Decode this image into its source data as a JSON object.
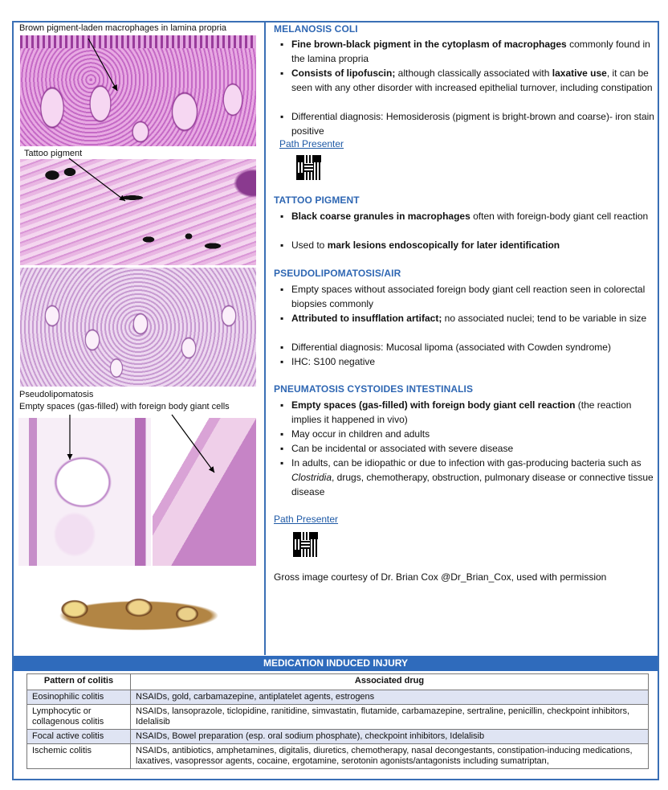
{
  "left": {
    "caption_melanosis": "Brown pigment-laden macrophages in lamina propria",
    "caption_tattoo": "Tattoo pigment",
    "caption_pseudo_1": "Pseudolipomatosis",
    "caption_pseudo_2": "Empty spaces (gas-filled) with foreign body giant cells"
  },
  "melanosis": {
    "heading": "MELANOSIS COLI",
    "b1_bold": "Fine brown-black pigment in the cytoplasm of macrophages",
    "b1_rest": " commonly found in the lamina propria",
    "b2_bold": "Consists of lipofuscin;",
    "b2_mid": " although classically associated with ",
    "b2_bold2": "laxative use",
    "b2_rest": ", it can be seen with any other disorder with increased epithelial turnover, including constipation",
    "b3": "Differential diagnosis: Hemosiderosis (pigment is bright-brown and coarse)- iron stain positive",
    "link": "Path Presenter"
  },
  "tattoo": {
    "heading": "TATTOO PIGMENT",
    "b1_bold": "Black coarse granules in macrophages",
    "b1_rest": " often with foreign-body giant cell reaction",
    "b2_pre": "Used to ",
    "b2_bold": "mark lesions endoscopically for later identification"
  },
  "pseudo": {
    "heading": "PSEUDOLIPOMATOSIS/AIR",
    "b1": "Empty spaces without associated foreign body giant cell reaction seen in colorectal biopsies commonly",
    "b2_bold": "Attributed to insufflation artifact;",
    "b2_rest": " no associated nuclei; tend to be variable in size",
    "b3": "Differential diagnosis: Mucosal lipoma (associated with Cowden syndrome)",
    "b4": "IHC: S100 negative"
  },
  "pneumatosis": {
    "heading": "PNEUMATOSIS CYSTOIDES INTESTINALIS",
    "b1_bold": "Empty spaces (gas-filled) with foreign body giant cell reaction",
    "b1_rest": " (the reaction implies it happened in vivo)",
    "b2": "May occur in children and adults",
    "b3": "Can be incidental or associated with severe disease",
    "b4_pre": "In adults, can be idiopathic or due to infection with gas-producing bacteria such as ",
    "b4_ital": "Clostridia",
    "b4_rest": ", drugs, chemotherapy, obstruction, pulmonary disease or connective tissue disease",
    "link": "Path Presenter",
    "courtesy": "Gross image courtesy of Dr. Brian Cox @Dr_Brian_Cox, used with permission"
  },
  "table": {
    "title": "MEDICATION INDUCED INJURY",
    "col1": "Pattern of colitis",
    "col2": "Associated drug",
    "rows": [
      {
        "pattern": "Eosinophilic colitis",
        "drug": "NSAIDs, gold, carbamazepine, antiplatelet agents, estrogens"
      },
      {
        "pattern": "Lymphocytic or collagenous colitis",
        "drug": "NSAIDs, lansoprazole, ticlopidine, ranitidine, simvastatin, flutamide, carbamazepine, sertraline, penicillin, checkpoint inhibitors, Idelalisib"
      },
      {
        "pattern": "Focal active colitis",
        "drug": "NSAIDs, Bowel preparation (esp. oral sodium phosphate), checkpoint inhibitors, Idelalisib"
      },
      {
        "pattern": "Ischemic colitis",
        "drug": "NSAIDs, antibiotics, amphetamines, digitalis, diuretics, chemotherapy, nasal decongestants, constipation-inducing medications, laxatives, vasopressor agents, cocaine, ergotamine, serotonin agonists/antagonists including sumatriptan,"
      }
    ]
  },
  "colors": {
    "accent": "#2f6bbc",
    "heading": "#2f67b3",
    "row_alt": "#dfe4f3"
  }
}
